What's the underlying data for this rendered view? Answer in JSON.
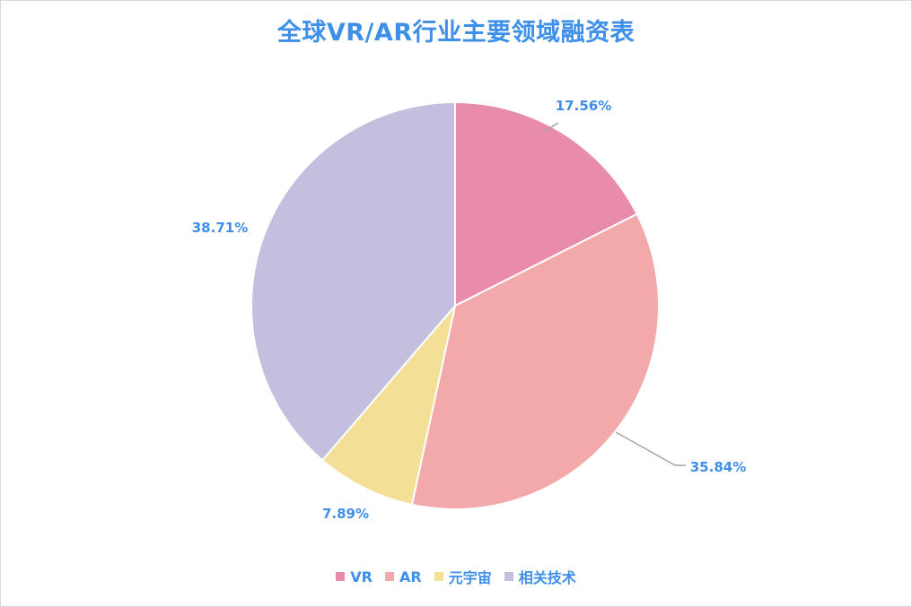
{
  "chart_data": {
    "type": "pie",
    "title": "全球VR/AR行业主要领域融资表",
    "categories": [
      "VR",
      "AR",
      "元宇宙",
      "相关技术"
    ],
    "values": [
      17.56,
      35.84,
      7.89,
      38.71
    ],
    "labels": [
      "17.56%",
      "35.84%",
      "7.89%",
      "38.71%"
    ],
    "colors": [
      "#e98cab",
      "#f3a9aa",
      "#f3df95",
      "#c4bedf"
    ],
    "legend_position": "bottom",
    "label_color": "#3d8fe8",
    "start_angle": "12 o'clock",
    "direction": "clockwise"
  }
}
